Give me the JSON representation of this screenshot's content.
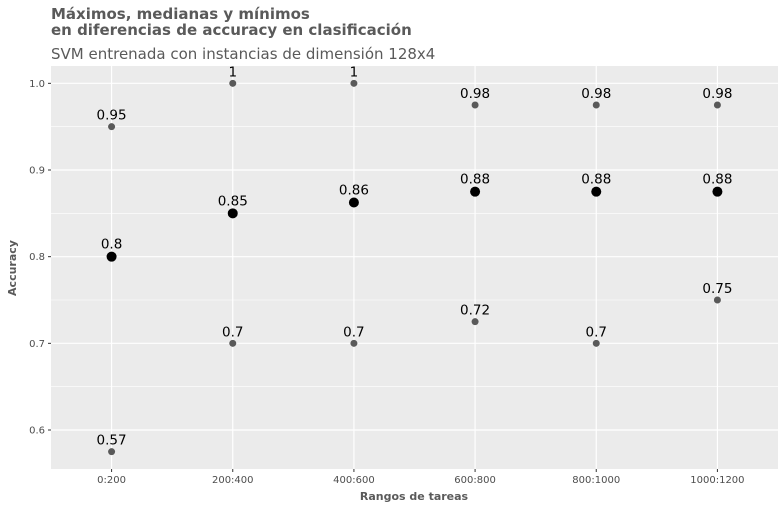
{
  "chart_data": {
    "type": "scatter",
    "title_line1": "Máximos, medianas y mínimos",
    "title_line2": "en diferencias de accuracy en clasificación",
    "subtitle": "SVM entrenada con instancias de dimensión 128x4",
    "xlabel": "Rangos de tareas",
    "ylabel": "Accuracy",
    "categories": [
      "0:200",
      "200:400",
      "400:600",
      "600:800",
      "800:1000",
      "1000:1200"
    ],
    "ylim": [
      0.555,
      1.02
    ],
    "yticks": [
      "0.6",
      "0.7",
      "0.8",
      "0.9",
      "1.0"
    ],
    "grid": true,
    "colors": {
      "panel": "#ebebeb",
      "grid_major": "#ffffff",
      "extreme_point": "#595959",
      "median_point": "#000000"
    },
    "series": [
      {
        "role": "max",
        "values": [
          0.95,
          1.0,
          1.0,
          0.975,
          0.975,
          0.975
        ],
        "labels": [
          "0.95",
          "1",
          "1",
          "0.98",
          "0.98",
          "0.98"
        ]
      },
      {
        "role": "median",
        "values": [
          0.8,
          0.85,
          0.8625,
          0.875,
          0.875,
          0.875
        ],
        "labels": [
          "0.8",
          "0.85",
          "0.86",
          "0.88",
          "0.88",
          "0.88"
        ]
      },
      {
        "role": "min",
        "values": [
          0.575,
          0.7,
          0.7,
          0.725,
          0.7,
          0.75
        ],
        "labels": [
          "0.57",
          "0.7",
          "0.7",
          "0.72",
          "0.7",
          "0.75"
        ]
      }
    ]
  }
}
